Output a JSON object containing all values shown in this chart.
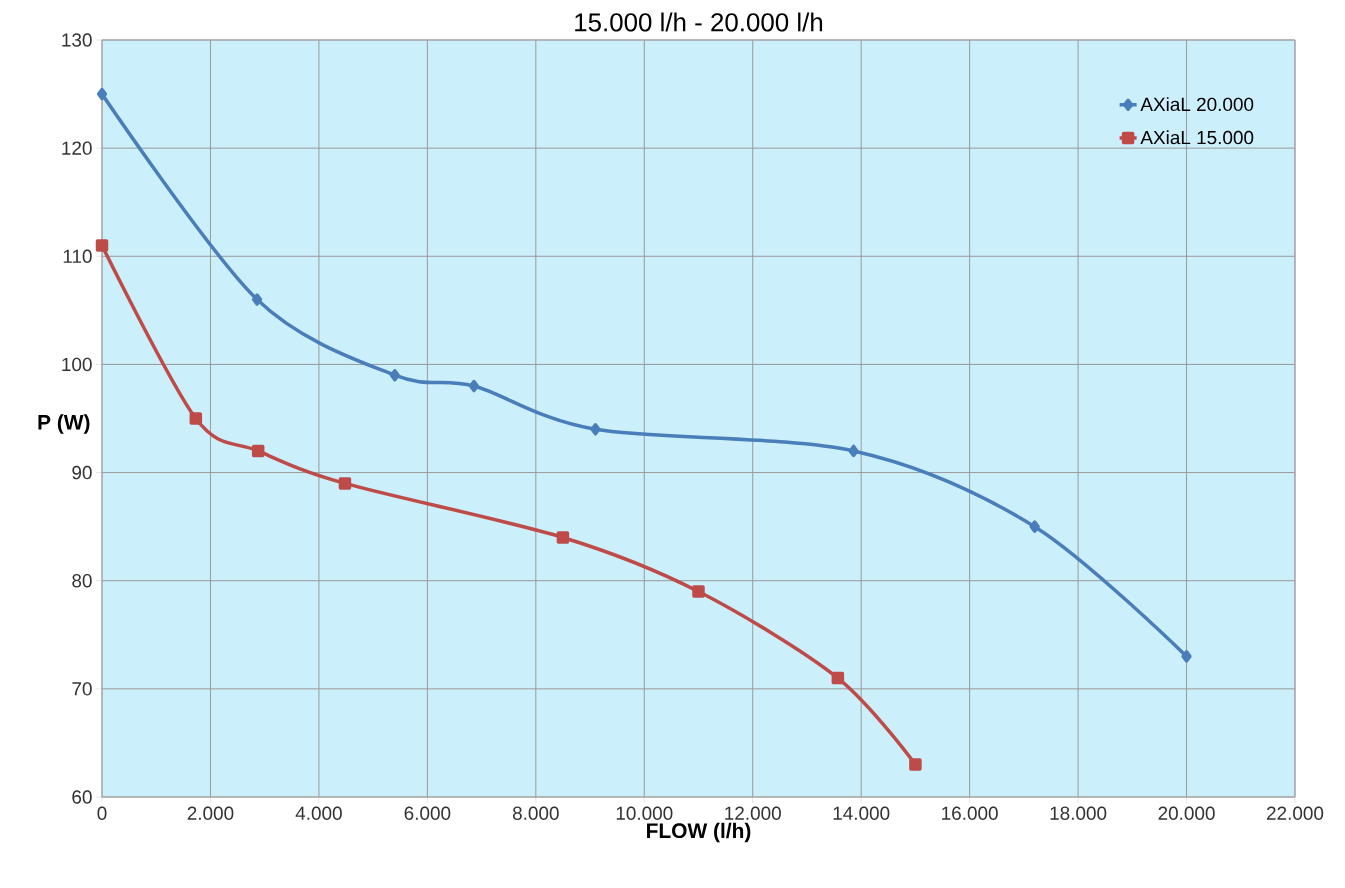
{
  "chart_data": {
    "type": "line",
    "title": "15.000 l/h  -  20.000 l/h",
    "xlabel": "FLOW (l/h)",
    "ylabel": "P (W)",
    "xlim": [
      0,
      22000
    ],
    "ylim": [
      60,
      130
    ],
    "xticks": [
      0,
      {
        "value": 2000,
        "label": "2.000"
      },
      {
        "value": 4000,
        "label": "4.000"
      },
      {
        "value": 6000,
        "label": "6.000"
      },
      {
        "value": 8000,
        "label": "8.000"
      },
      {
        "value": 10000,
        "label": "10.000"
      },
      {
        "value": 12000,
        "label": "12.000"
      },
      {
        "value": 14000,
        "label": "14.000"
      },
      {
        "value": 16000,
        "label": "16.000"
      },
      {
        "value": 18000,
        "label": "18.000"
      },
      {
        "value": 20000,
        "label": "20.000"
      },
      {
        "value": 22000,
        "label": "22.000"
      }
    ],
    "yticks": [
      60,
      70,
      80,
      90,
      100,
      110,
      120,
      130
    ],
    "grid": true,
    "legend": "top right",
    "line_style": "solid",
    "series": [
      {
        "name": "AXiaL 20.000",
        "color": "#4a7ebb",
        "marker": "diamond",
        "x": [
          0,
          2860,
          5400,
          6860,
          9100,
          13860,
          17200,
          20000
        ],
        "values": [
          125,
          106,
          99,
          98,
          94,
          92,
          85,
          73
        ]
      },
      {
        "name": "AXiaL 15.000",
        "color": "#be4b48",
        "marker": "square",
        "x": [
          0,
          1730,
          2880,
          4480,
          8500,
          11000,
          13570,
          15000
        ],
        "values": [
          111,
          95,
          92,
          89,
          84,
          79,
          71,
          63
        ]
      }
    ]
  }
}
